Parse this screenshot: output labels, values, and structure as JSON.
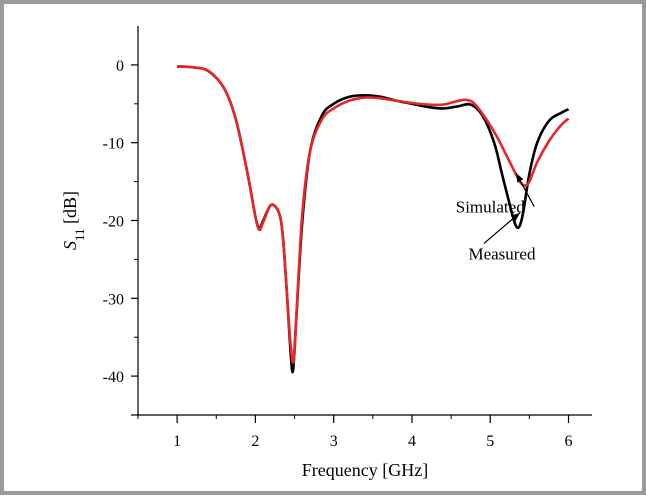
{
  "chart_data": {
    "type": "line",
    "xlabel": "Frequency [GHz]",
    "ylabel_main": "S",
    "ylabel_sub": "11",
    "ylabel_unit": " [dB]",
    "xlim": [
      0.5,
      6.3
    ],
    "ylim": [
      -45,
      5
    ],
    "xticks": [
      "1",
      "2",
      "3",
      "4",
      "5",
      "6"
    ],
    "yticks": [
      "0",
      "-10",
      "-20",
      "-30",
      "-40"
    ],
    "grid": false,
    "series": [
      {
        "name": "Measured",
        "color": "#000000",
        "x": [
          1.0,
          1.2,
          1.4,
          1.6,
          1.75,
          1.9,
          2.0,
          2.05,
          2.1,
          2.2,
          2.3,
          2.35,
          2.4,
          2.45,
          2.48,
          2.52,
          2.6,
          2.7,
          2.85,
          3.0,
          3.2,
          3.4,
          3.6,
          3.8,
          4.0,
          4.2,
          4.4,
          4.6,
          4.75,
          4.9,
          5.05,
          5.15,
          5.25,
          5.32,
          5.37,
          5.42,
          5.5,
          5.6,
          5.75,
          5.9,
          6.0
        ],
        "y": [
          -0.2,
          -0.3,
          -0.8,
          -3.0,
          -7.0,
          -14.0,
          -19.5,
          -21.0,
          -20.0,
          -18.0,
          -19.0,
          -22.0,
          -29.0,
          -37.0,
          -39.3,
          -33.0,
          -20.0,
          -11.0,
          -6.5,
          -5.0,
          -4.1,
          -3.9,
          -4.1,
          -4.6,
          -5.0,
          -5.4,
          -5.6,
          -5.3,
          -5.1,
          -6.5,
          -10.0,
          -14.0,
          -18.0,
          -20.5,
          -20.8,
          -19.0,
          -14.0,
          -10.0,
          -7.2,
          -6.2,
          -5.7
        ]
      },
      {
        "name": "Simulated",
        "color": "#e8262a",
        "x": [
          1.0,
          1.2,
          1.4,
          1.6,
          1.75,
          1.9,
          2.0,
          2.05,
          2.1,
          2.2,
          2.3,
          2.35,
          2.4,
          2.45,
          2.49,
          2.53,
          2.6,
          2.7,
          2.85,
          3.0,
          3.2,
          3.4,
          3.6,
          3.8,
          4.0,
          4.2,
          4.4,
          4.6,
          4.7,
          4.8,
          4.95,
          5.1,
          5.25,
          5.38,
          5.45,
          5.5,
          5.6,
          5.75,
          5.9,
          6.0
        ],
        "y": [
          -0.2,
          -0.3,
          -0.8,
          -3.0,
          -7.0,
          -14.0,
          -19.5,
          -21.2,
          -20.2,
          -18.0,
          -19.0,
          -22.0,
          -29.0,
          -36.0,
          -38.0,
          -31.0,
          -19.0,
          -11.0,
          -7.0,
          -5.6,
          -4.6,
          -4.2,
          -4.3,
          -4.6,
          -4.9,
          -5.1,
          -5.1,
          -4.6,
          -4.5,
          -5.0,
          -7.0,
          -9.5,
          -12.5,
          -15.0,
          -15.5,
          -15.0,
          -12.5,
          -9.8,
          -7.8,
          -6.9
        ]
      }
    ],
    "annotations": [
      {
        "text": "Simulated",
        "x": 5.0,
        "y": -19.0,
        "arrow_to_x": 5.33,
        "arrow_to_y": -13.9
      },
      {
        "text": "Measured",
        "x": 5.15,
        "y": -25.0,
        "arrow_to_x": 5.38,
        "arrow_to_y": -19.0
      }
    ]
  }
}
